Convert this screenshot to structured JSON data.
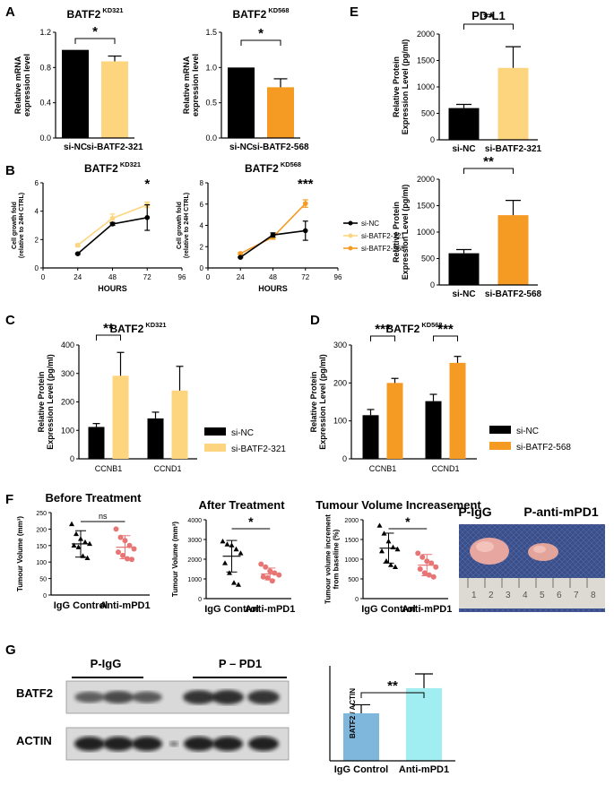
{
  "panel_letters": {
    "A": "A",
    "B": "B",
    "C": "C",
    "D": "D",
    "E": "E",
    "F": "F",
    "G": "G"
  },
  "colors": {
    "black": "#000000",
    "light": "#fdd57e",
    "orange": "#f59a23",
    "pink": "#e87575",
    "blue": "#7fb7dc",
    "cyan": "#a0eef1"
  },
  "chart_data": [
    {
      "id": "A1",
      "type": "bar",
      "title": "BATF2",
      "title_sup": "KD321",
      "categories": [
        "si-NC",
        "si-BATF2-321"
      ],
      "values": [
        1.0,
        0.87
      ],
      "errors": [
        0,
        0.06
      ],
      "ylabel": [
        "Relative mRNA",
        "expression level"
      ],
      "ylim": [
        0,
        1.2
      ],
      "yticks": [
        "0.0",
        "0.4",
        "0.8",
        "1.2"
      ],
      "significance": "*"
    },
    {
      "id": "A2",
      "type": "bar",
      "title": "BATF2",
      "title_sup": "KD568",
      "categories": [
        "si-NC",
        "si-BATF2-568"
      ],
      "values": [
        1.0,
        0.72
      ],
      "errors": [
        0,
        0.12
      ],
      "ylabel": [
        "Relative mRNA",
        "expression level"
      ],
      "ylim": [
        0,
        1.5
      ],
      "yticks": [
        "0.0",
        "0.5",
        "1.0",
        "1.5"
      ],
      "significance": "*"
    },
    {
      "id": "B1",
      "type": "line",
      "title": "BATF2",
      "title_sup": "KD321",
      "xlabel": "HOURS",
      "ylabel": [
        "Cell growth fold",
        "(relative to 24H CTRL)"
      ],
      "xticks": [
        "0",
        "24",
        "48",
        "72",
        "96"
      ],
      "yticks": [
        "0",
        "2",
        "4",
        "6"
      ],
      "xlim": [
        0,
        96
      ],
      "ylim": [
        0,
        6
      ],
      "x": [
        24,
        48,
        72
      ],
      "series": [
        {
          "name": "si-NC",
          "values": [
            1.0,
            3.1,
            3.55
          ],
          "errors": [
            0.05,
            0.1,
            0.9
          ]
        },
        {
          "name": "si-BATF2-321",
          "values": [
            1.6,
            3.5,
            4.45
          ],
          "errors": [
            0.1,
            0.3,
            0.2
          ]
        }
      ],
      "significance": "*"
    },
    {
      "id": "B2",
      "type": "line",
      "title": "BATF2",
      "title_sup": "KD568",
      "xlabel": "HOURS",
      "ylabel": [
        "Cell growth fold",
        "(relative to 24H CTRL)"
      ],
      "xticks": [
        "0",
        "24",
        "48",
        "72",
        "96"
      ],
      "yticks": [
        "0",
        "2",
        "4",
        "6",
        "8"
      ],
      "xlim": [
        0,
        96
      ],
      "ylim": [
        0,
        8
      ],
      "x": [
        24,
        48,
        72
      ],
      "series": [
        {
          "name": "si-NC",
          "values": [
            1.0,
            3.1,
            3.5
          ],
          "errors": [
            0.05,
            0.2,
            0.9
          ]
        },
        {
          "name": "si-BATF2-568",
          "values": [
            1.35,
            2.9,
            6.05
          ],
          "errors": [
            0.1,
            0.2,
            0.35
          ]
        }
      ],
      "legend": [
        "si-NC",
        "si-BATF2-321",
        "si-BATF2-568"
      ],
      "significance": "***"
    },
    {
      "id": "C",
      "type": "bar",
      "title": "BATF2",
      "title_sup": "KD321",
      "categories": [
        "CCNB1",
        "CCND1"
      ],
      "series": [
        {
          "name": "si-NC",
          "values": [
            112,
            142
          ],
          "errors": [
            12,
            22
          ]
        },
        {
          "name": "si-BATF2-321",
          "values": [
            292,
            240
          ],
          "errors": [
            82,
            85
          ]
        }
      ],
      "ylabel": [
        "Relative Protein",
        "Expression Level (pg/ml)"
      ],
      "ylim": [
        0,
        400
      ],
      "yticks": [
        "0",
        "100",
        "200",
        "300",
        "400"
      ],
      "significance": [
        "**"
      ]
    },
    {
      "id": "D",
      "type": "bar",
      "title": "BATF2",
      "title_sup": "KD568",
      "categories": [
        "CCNB1",
        "CCND1"
      ],
      "series": [
        {
          "name": "si-NC",
          "values": [
            115,
            152
          ],
          "errors": [
            15,
            18
          ]
        },
        {
          "name": "si-BATF2-568",
          "values": [
            200,
            253
          ],
          "errors": [
            12,
            17
          ]
        }
      ],
      "ylabel": [
        "Relative Protein",
        "Expression Level (pg/ml)"
      ],
      "ylim": [
        0,
        300
      ],
      "yticks": [
        "0",
        "100",
        "200",
        "300"
      ],
      "significance": [
        "***",
        "***"
      ]
    },
    {
      "id": "E1",
      "type": "bar",
      "title": "PD-L1",
      "categories": [
        "si-NC",
        "si-BATF2-321"
      ],
      "values": [
        600,
        1360
      ],
      "errors": [
        70,
        400
      ],
      "ylabel": [
        "Relative Protein",
        "Expression Level (pg/ml)"
      ],
      "ylim": [
        0,
        2000
      ],
      "yticks": [
        "0",
        "500",
        "1000",
        "1500",
        "2000"
      ],
      "significance": "**"
    },
    {
      "id": "E2",
      "type": "bar",
      "categories": [
        "si-NC",
        "si-BATF2-568"
      ],
      "values": [
        600,
        1320
      ],
      "errors": [
        70,
        280
      ],
      "ylabel": [
        "Relative Protein",
        "Expression Level (pg/ml)"
      ],
      "ylim": [
        0,
        2000
      ],
      "yticks": [
        "0",
        "500",
        "1000",
        "1500",
        "2000"
      ],
      "significance": "**"
    },
    {
      "id": "F1",
      "type": "scatter",
      "title": "Before Treatment",
      "categories": [
        "IgG Control",
        "Anti-mPD1"
      ],
      "groups": [
        [
          215,
          185,
          170,
          160,
          155,
          150,
          145,
          118,
          112
        ],
        [
          200,
          175,
          165,
          150,
          140,
          130,
          120,
          110,
          108
        ]
      ],
      "mean": [
        155,
        145
      ],
      "sd": [
        40,
        35
      ],
      "ylabel": "Tumour Volume (mm³)",
      "ylim": [
        0,
        250
      ],
      "yticks": [
        "0",
        "50",
        "100",
        "150",
        "200",
        "250"
      ],
      "significance": "ns"
    },
    {
      "id": "F2",
      "type": "scatter",
      "title": "After Treatment",
      "categories": [
        "IgG Control",
        "Anti-mPD1"
      ],
      "groups": [
        [
          2900,
          2750,
          2700,
          2500,
          2300,
          1800,
          1300,
          800,
          700
        ],
        [
          1750,
          1600,
          1400,
          1300,
          1200,
          1100,
          1050,
          900
        ]
      ],
      "mean": [
        2150,
        1250
      ],
      "sd": [
        800,
        300
      ],
      "ylabel": "Tumour Volume (mm³)",
      "ylim": [
        0,
        4000
      ],
      "yticks": [
        "0",
        "1000",
        "2000",
        "3000",
        "4000"
      ],
      "significance": "*"
    },
    {
      "id": "F3",
      "type": "scatter",
      "title": "Tumour Volume Increasement",
      "categories": [
        "IgG Control",
        "Anti-mPD1"
      ],
      "groups": [
        [
          1850,
          1650,
          1450,
          1300,
          1250,
          1200,
          950,
          850,
          800
        ],
        [
          1150,
          1050,
          950,
          900,
          800,
          750,
          650,
          600,
          550
        ]
      ],
      "mean": [
        1280,
        850
      ],
      "sd": [
        380,
        270
      ],
      "ylabel": [
        "Tumour volume increment",
        "from baseline (%)"
      ],
      "ylim": [
        0,
        2000
      ],
      "yticks": [
        "0",
        "500",
        "1000",
        "1500",
        "2000"
      ],
      "significance": "*"
    },
    {
      "id": "G",
      "type": "bar",
      "categories": [
        "IgG Control",
        "Anti-mPD1"
      ],
      "values": [
        1.0,
        1.53
      ],
      "errors": [
        0.18,
        0.3
      ],
      "ylabel": "BATF2 / ACTIN",
      "ylim": [
        0,
        2.0
      ],
      "significance": "**"
    }
  ],
  "photo": {
    "label_left": "P-IgG",
    "label_right": "P-anti-mPD1",
    "ruler_numbers": [
      "1",
      "2",
      "3",
      "4",
      "5",
      "6",
      "7",
      "8"
    ]
  },
  "blot": {
    "group_left": "P-IgG",
    "group_right": "P – PD1",
    "row1": "BATF2",
    "row2": "ACTIN"
  },
  "legends": {
    "c_ctrl": "si-NC",
    "c_kd": "si-BATF2-321",
    "d_ctrl": "si-NC",
    "d_kd": "si-BATF2-568"
  }
}
